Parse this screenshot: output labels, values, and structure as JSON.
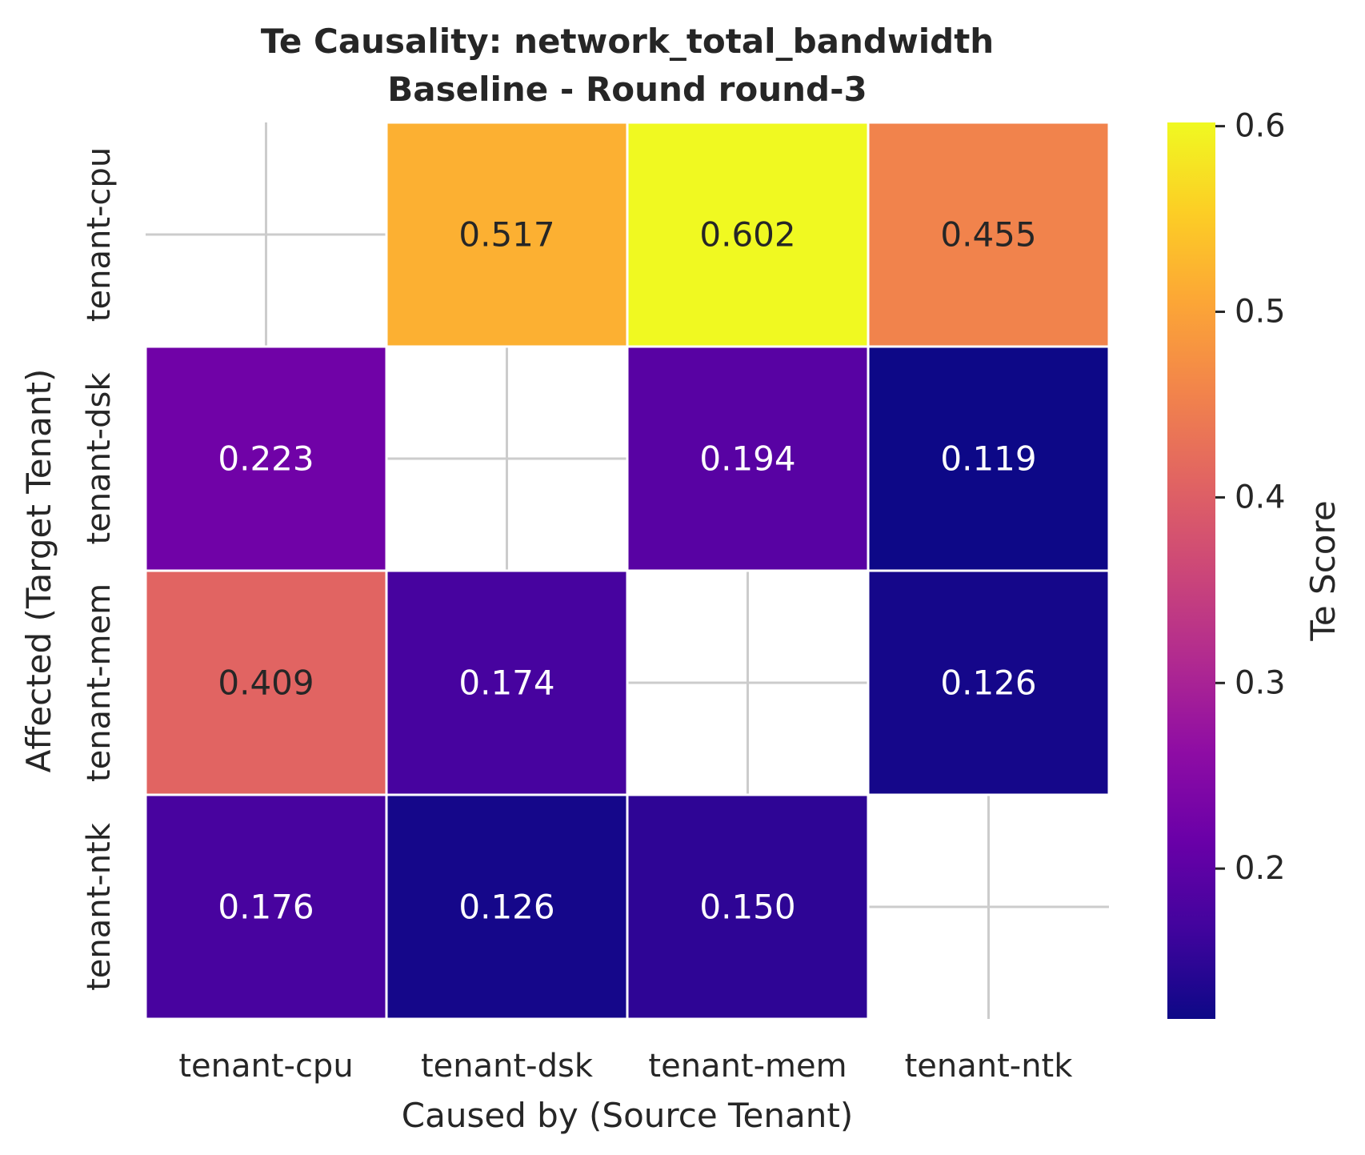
{
  "chart_data": {
    "type": "heatmap",
    "title_lines": [
      "Te Causality: network_total_bandwidth",
      "Baseline - Round round-3"
    ],
    "xlabel": "Caused by (Source Tenant)",
    "ylabel": "Affected (Target Tenant)",
    "x_categories": [
      "tenant-cpu",
      "tenant-dsk",
      "tenant-mem",
      "tenant-ntk"
    ],
    "y_categories": [
      "tenant-cpu",
      "tenant-dsk",
      "tenant-mem",
      "tenant-ntk"
    ],
    "values": [
      [
        null,
        0.517,
        0.602,
        0.455
      ],
      [
        0.223,
        null,
        0.194,
        0.119
      ],
      [
        0.409,
        0.174,
        null,
        0.126
      ],
      [
        0.176,
        0.126,
        0.15,
        null
      ]
    ],
    "value_labels": [
      [
        null,
        "0.517",
        "0.602",
        "0.455"
      ],
      [
        "0.223",
        null,
        "0.194",
        "0.119"
      ],
      [
        "0.409",
        "0.174",
        null,
        "0.126"
      ],
      [
        "0.176",
        "0.126",
        "0.150",
        null
      ]
    ],
    "colormap": "plasma",
    "vmin": 0.119,
    "vmax": 0.602,
    "colorbar": {
      "label": "Te Score",
      "ticks": [
        0.2,
        0.3,
        0.4,
        0.5,
        0.6
      ],
      "tick_labels": [
        "0.2",
        "0.3",
        "0.4",
        "0.5",
        "0.6"
      ]
    },
    "grid": true,
    "colors": {
      "grid": "#cccccc",
      "cell_border": "#ffffff",
      "dark_text": "#262626",
      "light_text": "#ffffff"
    }
  }
}
